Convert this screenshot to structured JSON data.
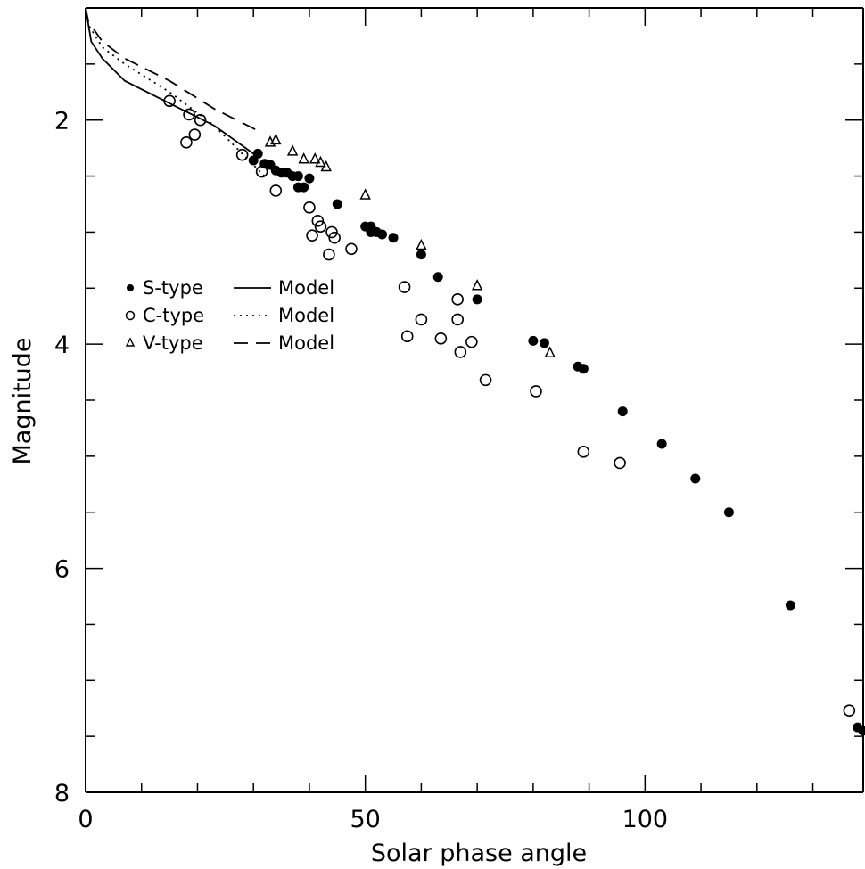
{
  "chart_data": {
    "type": "scatter",
    "title": "",
    "xlabel": "Solar phase angle",
    "ylabel": "Magnitude",
    "xlim": [
      0,
      139
    ],
    "ylim": [
      8,
      1
    ],
    "y_inverted": true,
    "grid": false,
    "legend_placement": "upper-left",
    "x_ticks": [
      0,
      50,
      100
    ],
    "x_tick_labels": [
      "0",
      "50",
      "100"
    ],
    "y_ticks": [
      2,
      4,
      6,
      8
    ],
    "y_tick_labels": [
      "2",
      "4",
      "6",
      "8"
    ],
    "series": [
      {
        "name": "S-type",
        "marker": "filled-circle",
        "points": [
          [
            30,
            2.36
          ],
          [
            30.8,
            2.3
          ],
          [
            32,
            2.39
          ],
          [
            33,
            2.4
          ],
          [
            34,
            2.45
          ],
          [
            35,
            2.47
          ],
          [
            36,
            2.47
          ],
          [
            37,
            2.5
          ],
          [
            38,
            2.5
          ],
          [
            38,
            2.6
          ],
          [
            39,
            2.6
          ],
          [
            40,
            2.52
          ],
          [
            45,
            2.75
          ],
          [
            50,
            2.95
          ],
          [
            51,
            2.95
          ],
          [
            51,
            3.0
          ],
          [
            52,
            3.0
          ],
          [
            53,
            3.02
          ],
          [
            55,
            3.05
          ],
          [
            60,
            3.2
          ],
          [
            63,
            3.4
          ],
          [
            70,
            3.6
          ],
          [
            80,
            3.97
          ],
          [
            82,
            3.99
          ],
          [
            88,
            4.2
          ],
          [
            89,
            4.22
          ],
          [
            96,
            4.6
          ],
          [
            103,
            4.89
          ],
          [
            109,
            5.2
          ],
          [
            115,
            5.5
          ],
          [
            126,
            6.33
          ],
          [
            138,
            7.42
          ],
          [
            139,
            7.45
          ]
        ]
      },
      {
        "name": "C-type",
        "marker": "open-circle",
        "points": [
          [
            15,
            1.83
          ],
          [
            18,
            2.2
          ],
          [
            18.5,
            1.95
          ],
          [
            19.5,
            2.13
          ],
          [
            20.5,
            2.0
          ],
          [
            28,
            2.31
          ],
          [
            31.5,
            2.46
          ],
          [
            34,
            2.63
          ],
          [
            40,
            2.78
          ],
          [
            40.5,
            3.03
          ],
          [
            41.5,
            2.9
          ],
          [
            42,
            2.95
          ],
          [
            43.5,
            3.2
          ],
          [
            44,
            3.0
          ],
          [
            44.5,
            3.05
          ],
          [
            47.5,
            3.15
          ],
          [
            57,
            3.49
          ],
          [
            57.5,
            3.93
          ],
          [
            60,
            3.78
          ],
          [
            63.5,
            3.95
          ],
          [
            66.5,
            3.6
          ],
          [
            66.5,
            3.78
          ],
          [
            67,
            4.07
          ],
          [
            69,
            3.98
          ],
          [
            71.5,
            4.32
          ],
          [
            80.5,
            4.42
          ],
          [
            89,
            4.96
          ],
          [
            95.5,
            5.06
          ],
          [
            136.5,
            7.27
          ]
        ]
      },
      {
        "name": "V-type",
        "marker": "open-triangle",
        "points": [
          [
            33,
            2.2
          ],
          [
            34,
            2.18
          ],
          [
            37,
            2.28
          ],
          [
            39,
            2.35
          ],
          [
            41,
            2.35
          ],
          [
            42,
            2.38
          ],
          [
            43,
            2.42
          ],
          [
            50,
            2.67
          ],
          [
            60,
            3.12
          ],
          [
            70,
            3.48
          ],
          [
            83,
            4.08
          ]
        ]
      },
      {
        "name": "Model",
        "legend_for": "S-type",
        "style": "solid",
        "points": [
          [
            0,
            1.0
          ],
          [
            1,
            1.3
          ],
          [
            3,
            1.45
          ],
          [
            7,
            1.65
          ],
          [
            15,
            1.85
          ],
          [
            23,
            2.05
          ],
          [
            30,
            2.3
          ]
        ]
      },
      {
        "name": "Model",
        "legend_for": "C-type",
        "style": "dotted",
        "points": [
          [
            0,
            1.0
          ],
          [
            0.5,
            1.15
          ],
          [
            3,
            1.35
          ],
          [
            7,
            1.5
          ],
          [
            15,
            1.75
          ],
          [
            23,
            2.05
          ],
          [
            32,
            2.5
          ]
        ]
      },
      {
        "name": "Model",
        "legend_for": "V-type",
        "style": "dashed",
        "points": [
          [
            0,
            1.0
          ],
          [
            0.5,
            1.12
          ],
          [
            3,
            1.3
          ],
          [
            7,
            1.45
          ],
          [
            15,
            1.65
          ],
          [
            23,
            1.9
          ],
          [
            31,
            2.1
          ]
        ]
      }
    ],
    "legend": [
      {
        "marker_label": "S-type",
        "line_label": "Model",
        "marker": "filled-circle",
        "line_style": "solid"
      },
      {
        "marker_label": "C-type",
        "line_label": "Model",
        "marker": "open-circle",
        "line_style": "dotted"
      },
      {
        "marker_label": "V-type",
        "line_label": "Model",
        "marker": "open-triangle",
        "line_style": "dashed"
      }
    ]
  }
}
